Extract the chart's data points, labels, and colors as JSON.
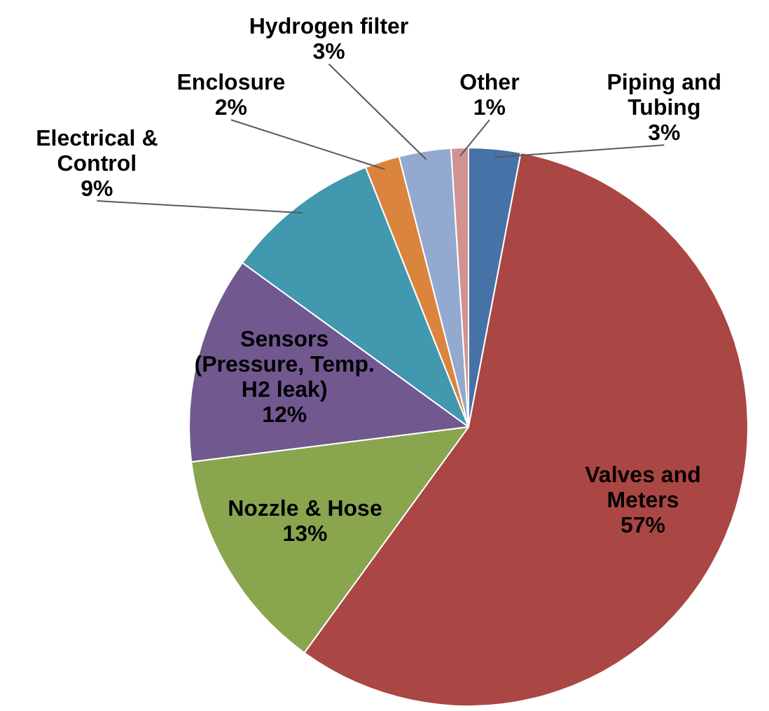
{
  "chart_data": {
    "type": "pie",
    "categories": [
      "Piping and Tubing",
      "Valves and Meters",
      "Nozzle & Hose",
      "Sensors (Pressure, Temp. H2 leak)",
      "Electrical & Control",
      "Enclosure",
      "Hydrogen filter",
      "Other"
    ],
    "values": [
      3,
      57,
      13,
      12,
      9,
      2,
      3,
      1
    ],
    "value_labels": [
      "3%",
      "57%",
      "13%",
      "12%",
      "9%",
      "2%",
      "3%",
      "1%"
    ],
    "colors": [
      "#4572a7",
      "#aa4643",
      "#89a54e",
      "#71588f",
      "#4198af",
      "#db843d",
      "#93a9cf",
      "#d19392"
    ],
    "legend": false
  }
}
